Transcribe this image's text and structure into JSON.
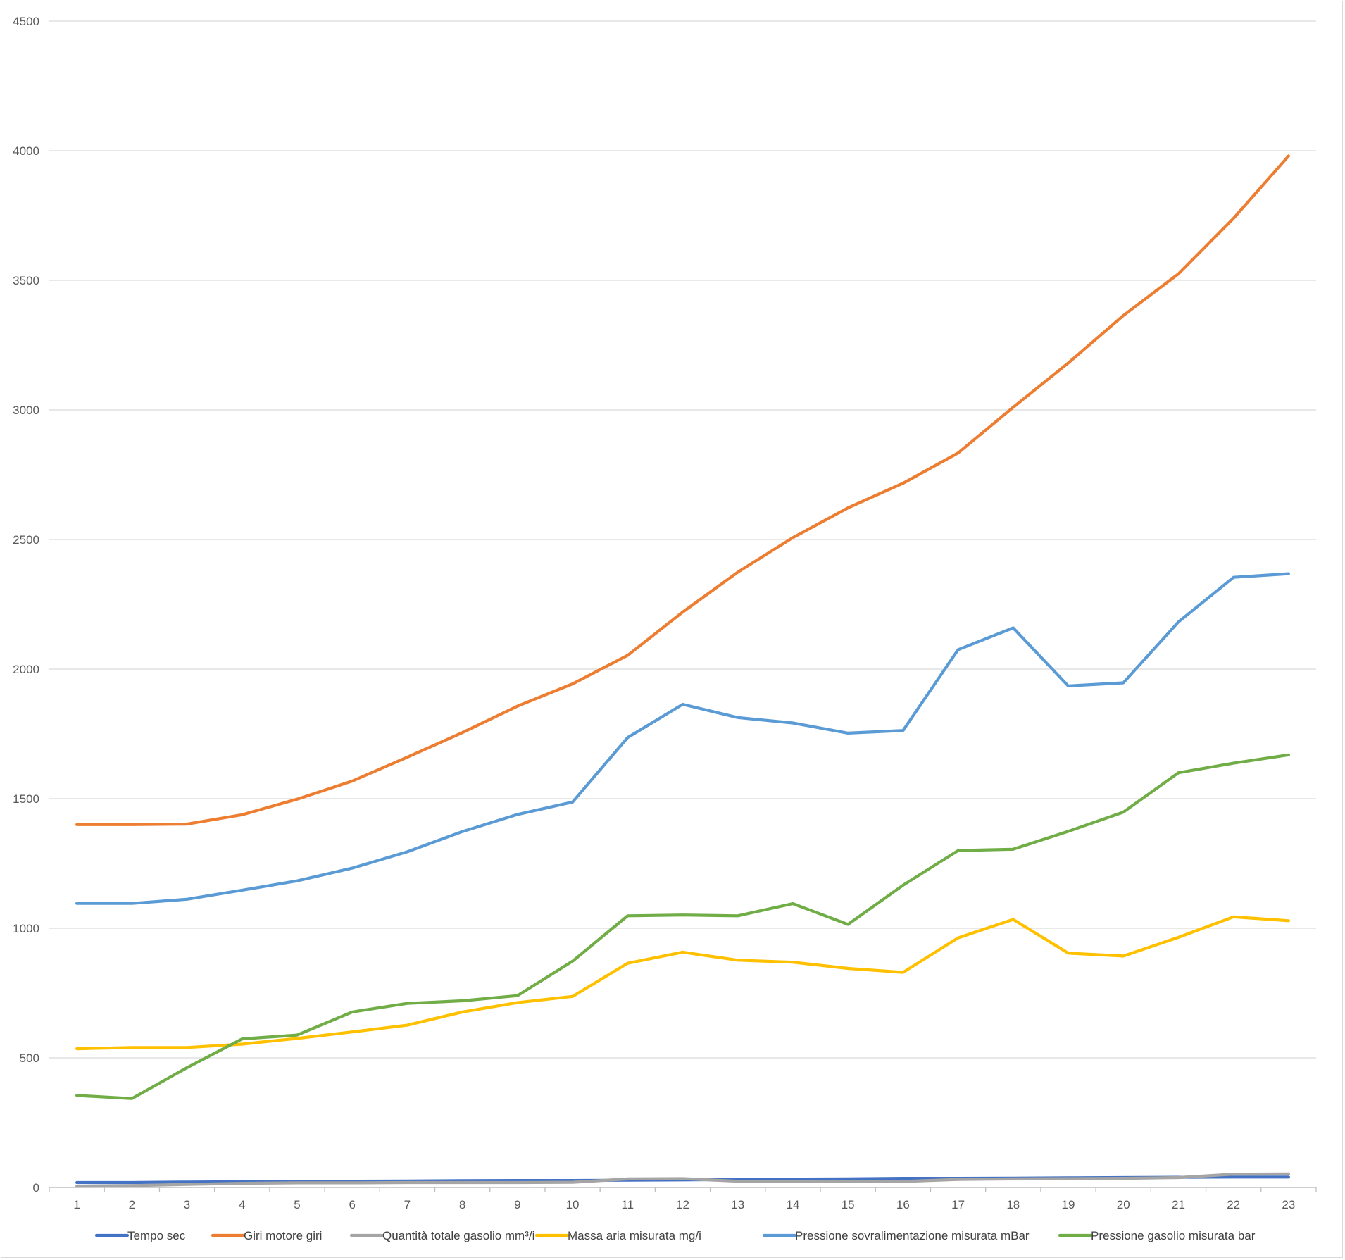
{
  "chart_data": {
    "type": "line",
    "title": "",
    "xlabel": "",
    "ylabel": "",
    "ylim": [
      0,
      4500
    ],
    "yticks": [
      0,
      500,
      1000,
      1500,
      2000,
      2500,
      3000,
      3500,
      4000,
      4500
    ],
    "grid": true,
    "legend_position": "bottom",
    "categories": [
      "1",
      "2",
      "3",
      "4",
      "5",
      "6",
      "7",
      "8",
      "9",
      "10",
      "11",
      "12",
      "13",
      "14",
      "15",
      "16",
      "17",
      "18",
      "19",
      "20",
      "21",
      "22",
      "23"
    ],
    "series": [
      {
        "name": "Tempo sec",
        "color": "#4472C4",
        "values": [
          19,
          19,
          21,
          22,
          23,
          24,
          25,
          26,
          27,
          27,
          28,
          29,
          31,
          32,
          33,
          35,
          35,
          36,
          37,
          38,
          39,
          40,
          40
        ]
      },
      {
        "name": "Giri motore giri",
        "color": "#ED7D31",
        "values": [
          1400,
          1400,
          1402,
          1438,
          1498,
          1568,
          1660,
          1755,
          1857,
          1943,
          2053,
          2220,
          2374,
          2507,
          2622,
          2717,
          2834,
          3010,
          3181,
          3364,
          3525,
          3739,
          3980
        ]
      },
      {
        "name": "Quantità totale gasolio mm³/i",
        "color": "#A5A5A5",
        "values": [
          5,
          7,
          12,
          16,
          18,
          18,
          19,
          19,
          19,
          20,
          33,
          34,
          24,
          24,
          22,
          23,
          31,
          33,
          34,
          35,
          38,
          51,
          52
        ]
      },
      {
        "name": "Massa aria misurata mg/i",
        "color": "#FFC000",
        "values": [
          535,
          540,
          540,
          553,
          575,
          600,
          626,
          677,
          713,
          737,
          865,
          908,
          877,
          869,
          845,
          830,
          963,
          1034,
          904,
          893,
          965,
          1044,
          1029
        ]
      },
      {
        "name": "Pressione sovralimentazione misurata mBar",
        "color": "#5B9BD5",
        "values": [
          1096,
          1096,
          1112,
          1147,
          1183,
          1232,
          1295,
          1373,
          1439,
          1487,
          1736,
          1864,
          1813,
          1792,
          1753,
          1763,
          2075,
          2159,
          1935,
          1947,
          2182,
          2354,
          2368
        ]
      },
      {
        "name": "Pressione gasolio misurata bar",
        "color": "#70AD47",
        "values": [
          355,
          343,
          462,
          573,
          588,
          677,
          710,
          720,
          740,
          873,
          1048,
          1051,
          1048,
          1095,
          1015,
          1166,
          1300,
          1305,
          1374,
          1448,
          1600,
          1637,
          1669
        ]
      }
    ]
  }
}
